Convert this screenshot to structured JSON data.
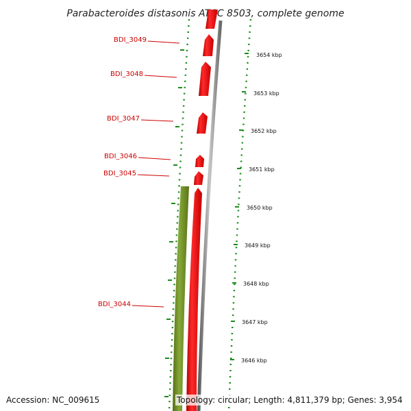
{
  "title": "Parabacteroides distasonis ATCC 8503, complete genome",
  "colors": {
    "forward_gene": "#e60000",
    "reverse_gene": "#6f8f1f",
    "backbone": "#8c8c8c",
    "ruler": "#1a8a1a",
    "label": "#cc0000"
  },
  "genes": [
    {
      "name": "BDI_3049",
      "strand": "forward"
    },
    {
      "name": "BDI_3048",
      "strand": "forward"
    },
    {
      "name": "BDI_3047",
      "strand": "forward"
    },
    {
      "name": "BDI_3046",
      "strand": "forward"
    },
    {
      "name": "BDI_3045",
      "strand": "forward"
    },
    {
      "name": "BDI_3044",
      "strand": "reverse"
    }
  ],
  "ticks": [
    "3654 kbp",
    "3653 kbp",
    "3652 kbp",
    "3651 kbp",
    "3650 kbp",
    "3649 kbp",
    "3648 kbp",
    "3647 kbp",
    "3646 kbp"
  ],
  "footer": {
    "accession": "Accession: NC_009615",
    "summary": "Topology: circular; Length: 4,811,379 bp; Genes: 3,954"
  }
}
